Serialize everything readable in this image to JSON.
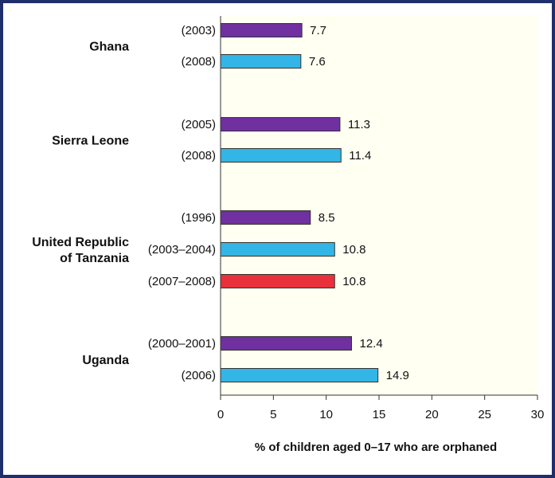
{
  "chart_data": {
    "type": "bar",
    "orientation": "horizontal",
    "xlabel": "% of children aged 0–17 who are orphaned",
    "xlim": [
      0,
      30
    ],
    "xticks": [
      0,
      5,
      10,
      15,
      20,
      25,
      30
    ],
    "grid": false,
    "legend": "none",
    "groups": [
      {
        "country": [
          "Ghana"
        ],
        "bars": [
          {
            "label": "(2003)",
            "value": 7.7,
            "value_label": "7.7",
            "color": "#7030a0"
          },
          {
            "label": "(2008)",
            "value": 7.6,
            "value_label": "7.6",
            "color": "#33b5e5"
          }
        ]
      },
      {
        "country": [
          "Sierra Leone"
        ],
        "bars": [
          {
            "label": "(2005)",
            "value": 11.3,
            "value_label": "11.3",
            "color": "#7030a0"
          },
          {
            "label": "(2008)",
            "value": 11.4,
            "value_label": "11.4",
            "color": "#33b5e5"
          }
        ]
      },
      {
        "country": [
          "United Republic",
          "of Tanzania"
        ],
        "bars": [
          {
            "label": "(1996)",
            "value": 8.5,
            "value_label": "8.5",
            "color": "#7030a0"
          },
          {
            "label": "(2003–2004)",
            "value": 10.8,
            "value_label": "10.8",
            "color": "#33b5e5"
          },
          {
            "label": "(2007–2008)",
            "value": 10.8,
            "value_label": "10.8",
            "color": "#e8313a"
          }
        ]
      },
      {
        "country": [
          "Uganda"
        ],
        "bars": [
          {
            "label": "(2000–2001)",
            "value": 12.4,
            "value_label": "12.4",
            "color": "#7030a0"
          },
          {
            "label": "(2006)",
            "value": 14.9,
            "value_label": "14.9",
            "color": "#33b5e5"
          }
        ]
      }
    ],
    "colors": {
      "plot_background": "#fffff2",
      "frame": "#1f2f6b",
      "bar_outline": "#333333"
    }
  }
}
